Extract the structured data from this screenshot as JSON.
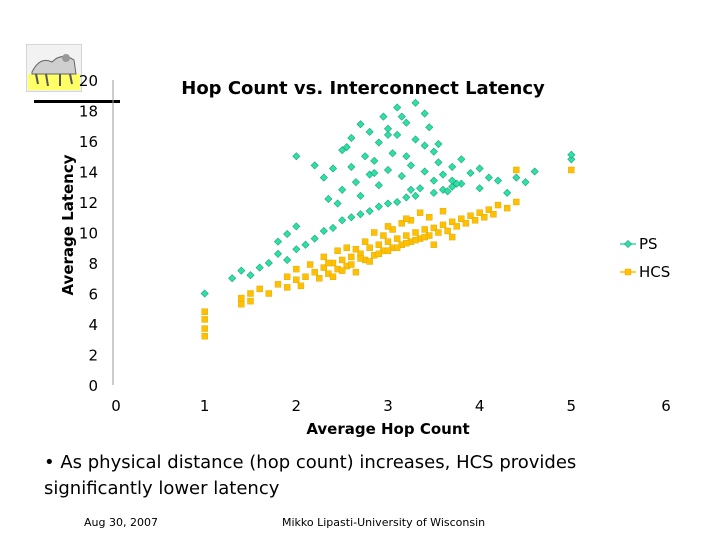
{
  "chart_data": {
    "type": "scatter",
    "title": "Hop Count vs. Interconnect Latency",
    "xlabel": "Average Hop Count",
    "ylabel": "Average Latency",
    "xlim": [
      0,
      6
    ],
    "ylim": [
      0,
      20
    ],
    "x_ticks": [
      "0",
      "1",
      "2",
      "3",
      "4",
      "5",
      "6"
    ],
    "y_ticks": [
      "0",
      "2",
      "4",
      "6",
      "8",
      "10",
      "12",
      "14",
      "16",
      "18",
      "20"
    ],
    "grid": false,
    "legend_position": "right",
    "series": [
      {
        "name": "PS",
        "color": "#2EE0A6",
        "marker": "diamond",
        "points": [
          [
            1.0,
            6.0
          ],
          [
            1.3,
            7.0
          ],
          [
            1.4,
            7.5
          ],
          [
            1.5,
            7.2
          ],
          [
            1.6,
            7.7
          ],
          [
            1.7,
            8.0
          ],
          [
            1.8,
            8.6
          ],
          [
            1.9,
            8.2
          ],
          [
            2.0,
            8.9
          ],
          [
            2.1,
            9.2
          ],
          [
            2.2,
            9.6
          ],
          [
            2.3,
            10.1
          ],
          [
            2.4,
            10.3
          ],
          [
            2.5,
            10.8
          ],
          [
            2.6,
            11.0
          ],
          [
            2.7,
            11.2
          ],
          [
            2.8,
            11.4
          ],
          [
            2.9,
            11.7
          ],
          [
            3.0,
            11.9
          ],
          [
            3.1,
            12.0
          ],
          [
            3.2,
            12.3
          ],
          [
            3.3,
            12.4
          ],
          [
            3.5,
            12.6
          ],
          [
            3.6,
            12.8
          ],
          [
            3.7,
            13.0
          ],
          [
            3.8,
            13.2
          ],
          [
            4.0,
            12.9
          ],
          [
            4.2,
            13.4
          ],
          [
            4.4,
            13.6
          ],
          [
            4.6,
            14.0
          ],
          [
            5.0,
            14.8
          ],
          [
            5.0,
            15.1
          ],
          [
            2.0,
            15.0
          ],
          [
            2.2,
            14.4
          ],
          [
            2.3,
            13.6
          ],
          [
            2.4,
            14.2
          ],
          [
            2.45,
            11.9
          ],
          [
            2.5,
            12.8
          ],
          [
            2.5,
            15.4
          ],
          [
            2.55,
            15.6
          ],
          [
            2.6,
            16.2
          ],
          [
            2.6,
            14.3
          ],
          [
            2.65,
            13.3
          ],
          [
            2.7,
            17.1
          ],
          [
            2.75,
            15.0
          ],
          [
            2.8,
            13.8
          ],
          [
            2.8,
            16.6
          ],
          [
            2.85,
            14.7
          ],
          [
            2.9,
            15.9
          ],
          [
            2.9,
            13.1
          ],
          [
            2.95,
            17.6
          ],
          [
            3.0,
            16.8
          ],
          [
            3.0,
            14.1
          ],
          [
            3.05,
            15.2
          ],
          [
            3.1,
            18.2
          ],
          [
            3.1,
            16.4
          ],
          [
            3.15,
            13.7
          ],
          [
            3.2,
            17.2
          ],
          [
            3.2,
            15.0
          ],
          [
            3.25,
            14.4
          ],
          [
            3.3,
            16.1
          ],
          [
            3.3,
            18.5
          ],
          [
            3.35,
            12.9
          ],
          [
            3.4,
            15.7
          ],
          [
            3.4,
            14.0
          ],
          [
            3.45,
            16.9
          ],
          [
            3.5,
            15.3
          ],
          [
            3.5,
            13.4
          ],
          [
            3.55,
            14.6
          ],
          [
            3.6,
            13.8
          ],
          [
            3.65,
            12.7
          ],
          [
            3.7,
            14.3
          ],
          [
            3.75,
            13.2
          ],
          [
            3.8,
            14.8
          ],
          [
            3.9,
            13.9
          ],
          [
            4.0,
            14.2
          ],
          [
            4.1,
            13.6
          ],
          [
            3.0,
            16.4
          ],
          [
            3.15,
            17.6
          ],
          [
            2.85,
            13.9
          ],
          [
            3.4,
            17.8
          ],
          [
            3.55,
            15.8
          ],
          [
            2.35,
            12.2
          ],
          [
            3.7,
            13.4
          ],
          [
            3.25,
            12.8
          ],
          [
            2.7,
            12.4
          ],
          [
            4.3,
            12.6
          ],
          [
            4.5,
            13.3
          ],
          [
            1.8,
            9.4
          ],
          [
            2.0,
            10.4
          ],
          [
            1.9,
            9.9
          ]
        ]
      },
      {
        "name": "HCS",
        "color": "#FFC000",
        "marker": "square",
        "points": [
          [
            1.0,
            3.2
          ],
          [
            1.0,
            3.7
          ],
          [
            1.0,
            4.3
          ],
          [
            1.0,
            4.8
          ],
          [
            1.4,
            5.3
          ],
          [
            1.4,
            5.7
          ],
          [
            1.5,
            6.0
          ],
          [
            1.5,
            5.5
          ],
          [
            1.6,
            6.3
          ],
          [
            1.7,
            6.0
          ],
          [
            1.8,
            6.6
          ],
          [
            1.9,
            6.4
          ],
          [
            2.0,
            6.9
          ],
          [
            2.05,
            6.5
          ],
          [
            2.1,
            7.1
          ],
          [
            2.2,
            7.4
          ],
          [
            2.25,
            7.0
          ],
          [
            2.3,
            7.7
          ],
          [
            2.35,
            7.3
          ],
          [
            2.4,
            8.0
          ],
          [
            2.45,
            7.6
          ],
          [
            2.5,
            8.2
          ],
          [
            2.55,
            7.8
          ],
          [
            2.6,
            8.4
          ],
          [
            2.65,
            8.9
          ],
          [
            2.7,
            8.6
          ],
          [
            2.75,
            8.2
          ],
          [
            2.8,
            9.0
          ],
          [
            2.85,
            8.5
          ],
          [
            2.9,
            9.2
          ],
          [
            2.95,
            8.8
          ],
          [
            3.0,
            9.4
          ],
          [
            3.05,
            9.0
          ],
          [
            3.1,
            9.6
          ],
          [
            3.15,
            9.2
          ],
          [
            3.2,
            9.8
          ],
          [
            3.25,
            9.4
          ],
          [
            3.3,
            10.0
          ],
          [
            3.35,
            9.6
          ],
          [
            3.4,
            10.2
          ],
          [
            3.45,
            9.8
          ],
          [
            3.5,
            10.3
          ],
          [
            3.55,
            10.0
          ],
          [
            3.6,
            10.5
          ],
          [
            3.65,
            10.1
          ],
          [
            3.7,
            10.7
          ],
          [
            3.75,
            10.4
          ],
          [
            3.8,
            10.9
          ],
          [
            3.85,
            10.6
          ],
          [
            3.9,
            11.1
          ],
          [
            3.95,
            10.8
          ],
          [
            4.0,
            11.3
          ],
          [
            4.05,
            11.0
          ],
          [
            4.1,
            11.5
          ],
          [
            4.15,
            11.2
          ],
          [
            4.2,
            11.8
          ],
          [
            4.3,
            11.6
          ],
          [
            4.4,
            12.0
          ],
          [
            4.4,
            14.1
          ],
          [
            5.0,
            14.1
          ],
          [
            2.4,
            7.1
          ],
          [
            2.5,
            7.5
          ],
          [
            2.6,
            7.9
          ],
          [
            2.7,
            8.3
          ],
          [
            2.8,
            8.1
          ],
          [
            2.9,
            8.6
          ],
          [
            3.0,
            8.8
          ],
          [
            3.1,
            9.0
          ],
          [
            3.2,
            9.3
          ],
          [
            3.3,
            9.5
          ],
          [
            3.4,
            9.7
          ],
          [
            2.55,
            9.0
          ],
          [
            2.75,
            9.4
          ],
          [
            2.95,
            9.8
          ],
          [
            3.05,
            10.2
          ],
          [
            3.15,
            10.6
          ],
          [
            3.25,
            10.8
          ],
          [
            3.45,
            11.0
          ],
          [
            3.35,
            11.3
          ],
          [
            2.3,
            8.4
          ],
          [
            2.15,
            7.9
          ],
          [
            2.85,
            10.0
          ],
          [
            3.6,
            11.4
          ],
          [
            3.5,
            9.2
          ],
          [
            3.7,
            9.7
          ],
          [
            2.65,
            7.4
          ],
          [
            1.9,
            7.1
          ],
          [
            2.0,
            7.6
          ],
          [
            3.0,
            10.4
          ],
          [
            3.2,
            10.9
          ],
          [
            2.45,
            8.8
          ],
          [
            2.35,
            8.0
          ]
        ]
      }
    ]
  },
  "slide": {
    "bullet": "• As physical distance (hop count) increases, HCS provides significantly lower latency",
    "footer_date": "Aug 30, 2007",
    "footer_author": "Mikko Lipasti-University of Wisconsin"
  }
}
